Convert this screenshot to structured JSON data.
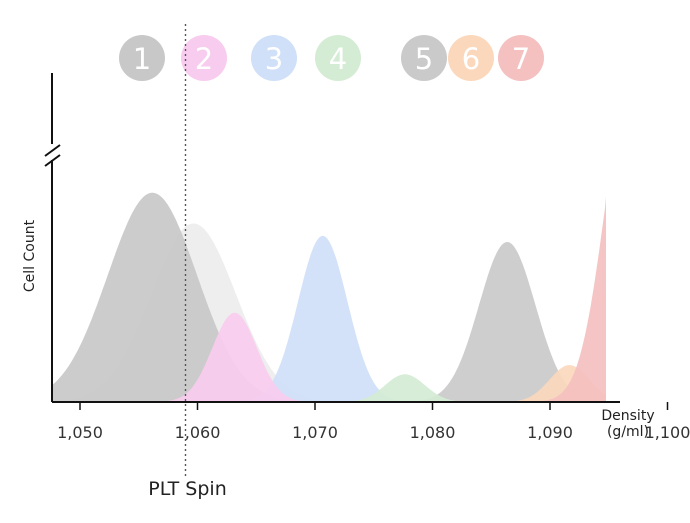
{
  "chart_data": {
    "type": "area",
    "xlabel": "Density",
    "xlabel_unit": "(g/ml)",
    "ylabel": "Cell Count",
    "xlim": [
      1047,
      1108
    ],
    "ylim": [
      0,
      1.1
    ],
    "y_axis_break": true,
    "grid": false,
    "x_ticks": [
      1050,
      1060,
      1070,
      1080,
      1090,
      1100
    ],
    "x_tick_labels": [
      "1,050",
      "1,060",
      "1,070",
      "1,080",
      "1,090",
      "1,100"
    ],
    "series": [
      {
        "name": "1",
        "color": "#c8c8c8",
        "type": "gaussian",
        "mean": 1056.5,
        "sd": 3.8,
        "peak": 0.68
      },
      {
        "name": "2",
        "color": "#f8ccee",
        "type": "gaussian",
        "mean": 1063.5,
        "sd": 1.9,
        "peak": 0.29
      },
      {
        "name": "3",
        "color": "#cfe0f8",
        "type": "gaussian",
        "mean": 1071.0,
        "sd": 2.1,
        "peak": 0.54
      },
      {
        "name": "4",
        "color": "#d4ecd4",
        "type": "gaussian",
        "mean": 1078.0,
        "sd": 1.7,
        "peak": 0.09
      },
      {
        "name": "5",
        "color": "#cacaca",
        "type": "gaussian",
        "mean": 1086.7,
        "sd": 2.4,
        "peak": 0.52
      },
      {
        "name": "6",
        "color": "#fbd8bc",
        "type": "gaussian",
        "mean": 1092.0,
        "sd": 1.7,
        "peak": 0.12
      },
      {
        "name": "7",
        "color": "#f4c0c0",
        "type": "gaussian",
        "mean": 1097.2,
        "sd": 2.2,
        "peak": 1.03
      }
    ],
    "background_shoulder": {
      "color": "#eeeeee",
      "mean": 1060.0,
      "sd": 3.6,
      "peak": 0.58
    },
    "marker": {
      "x": 1060,
      "label": "PLT Spin",
      "style": "dotted"
    }
  }
}
